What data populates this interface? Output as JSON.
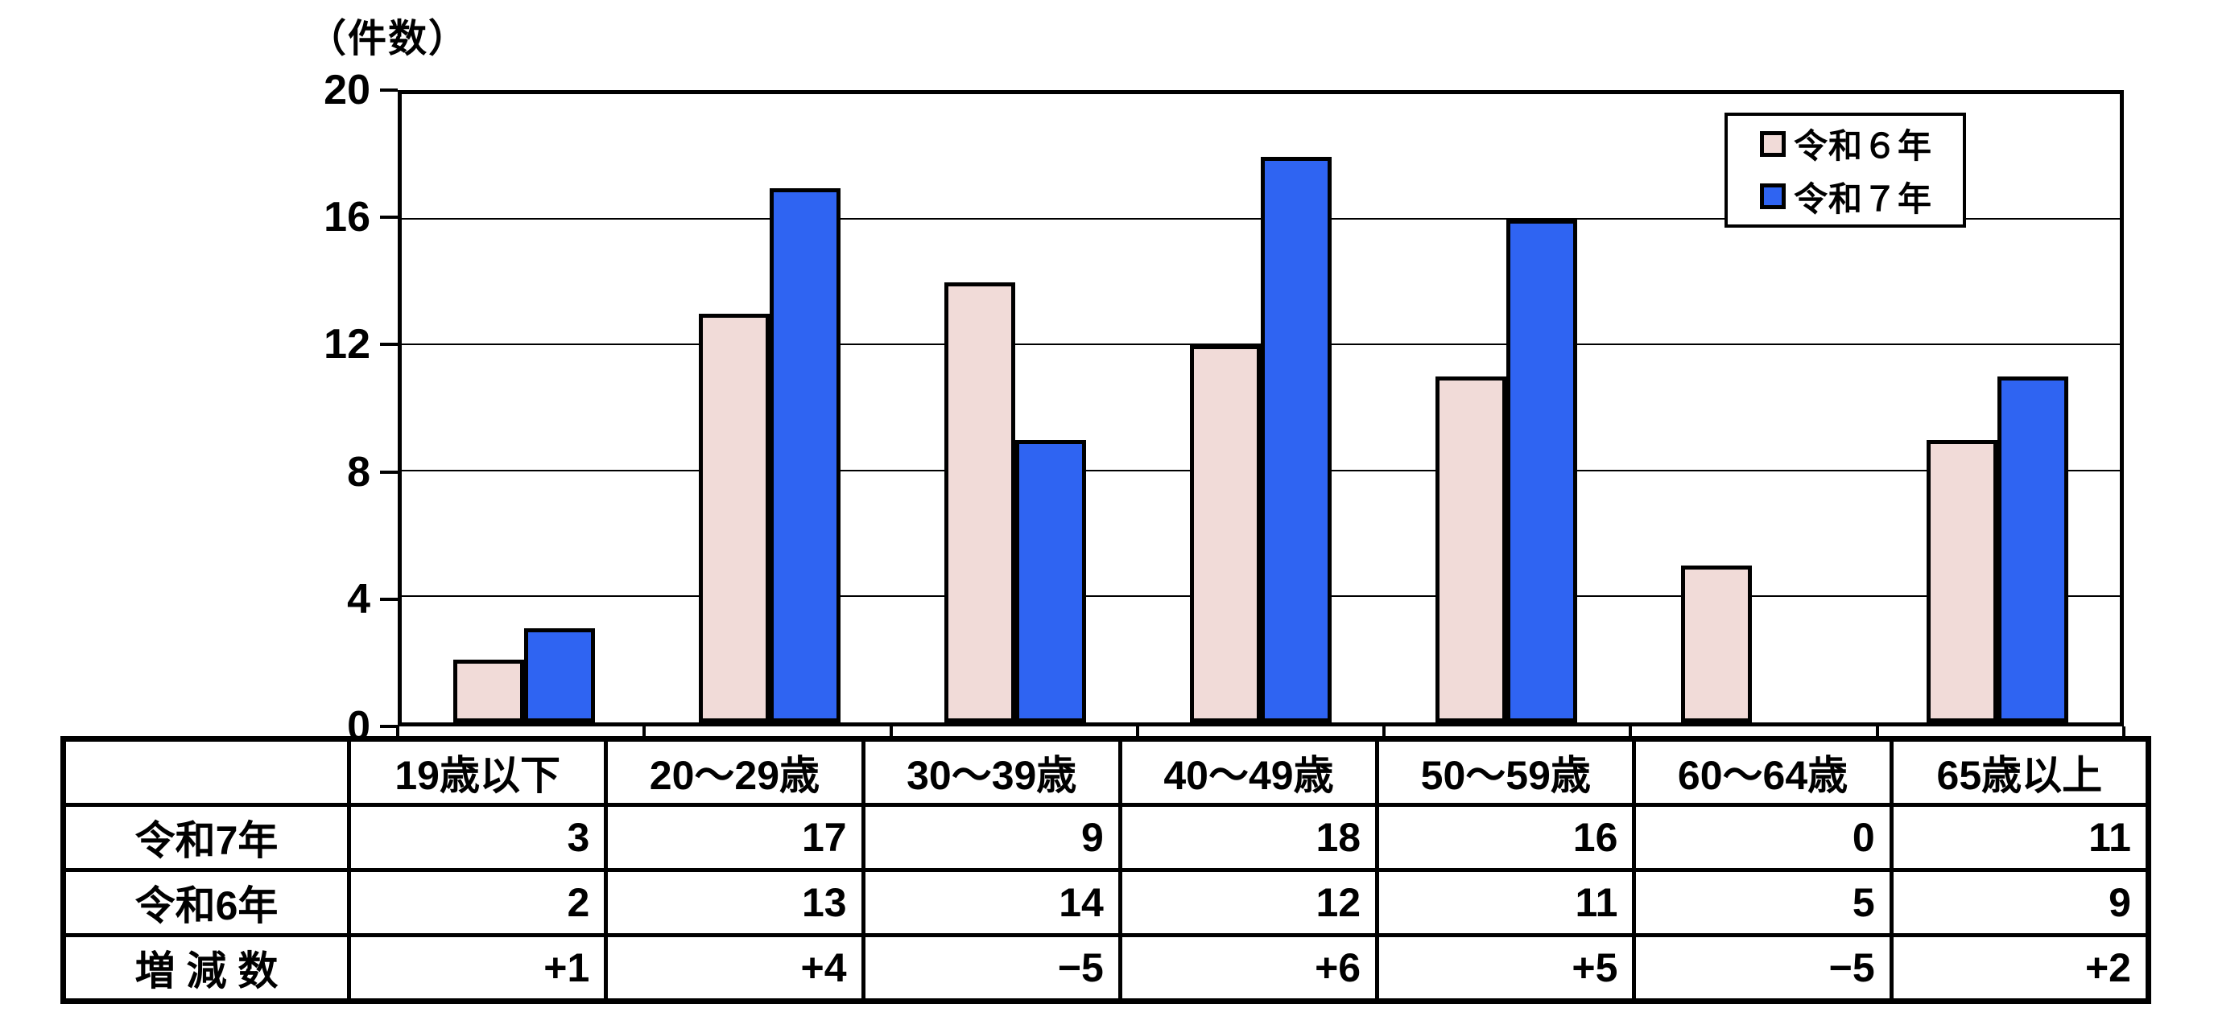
{
  "chart_data": {
    "type": "bar",
    "title": "",
    "ylabel_unit": "（件数）",
    "categories": [
      "19歳以下",
      "20～29歳",
      "30～39歳",
      "40～49歳",
      "50～59歳",
      "60～64歳",
      "65歳以上"
    ],
    "series": [
      {
        "name": "令和６年",
        "color": "#F1DBD8",
        "values": [
          2,
          13,
          14,
          12,
          11,
          5,
          9
        ]
      },
      {
        "name": "令和７年",
        "color": "#2F64F2",
        "values": [
          3,
          17,
          9,
          18,
          16,
          0,
          11
        ]
      }
    ],
    "ylim": [
      0,
      20
    ],
    "yticks": [
      0,
      4,
      8,
      12,
      16,
      20
    ],
    "grid": true,
    "legend_position": "top-right-inside"
  },
  "table": {
    "corner_label": "",
    "column_headers": [
      "19歳以下",
      "20～29歳",
      "30～39歳",
      "40～49歳",
      "50～59歳",
      "60～64歳",
      "65歳以上"
    ],
    "rows": [
      {
        "label": "令和7年",
        "values": [
          "3",
          "17",
          "9",
          "18",
          "16",
          "0",
          "11"
        ]
      },
      {
        "label": "令和6年",
        "values": [
          "2",
          "13",
          "14",
          "12",
          "11",
          "5",
          "9"
        ]
      },
      {
        "label": "増 減 数",
        "values": [
          "+1",
          "+4",
          "−5",
          "+6",
          "+5",
          "−5",
          "+2"
        ]
      }
    ]
  },
  "colors": {
    "series_reiwa6": "#F1DBD8",
    "series_reiwa7": "#2F64F2",
    "axis": "#000000",
    "background": "#FFFFFF"
  }
}
